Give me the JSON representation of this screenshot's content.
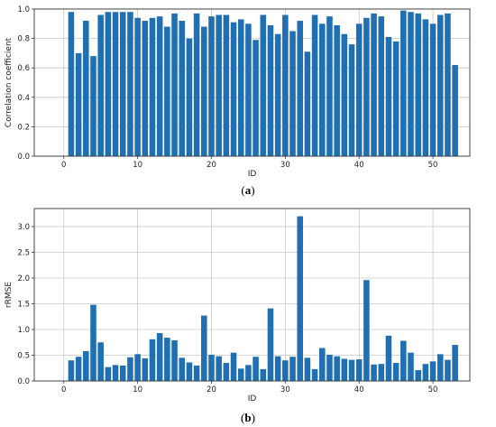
{
  "chart_data": [
    {
      "id": "a",
      "type": "bar",
      "xlabel": "ID",
      "ylabel": "Correlation coefficient",
      "xlim": [
        -4,
        55
      ],
      "ylim": [
        0,
        1.0
      ],
      "xticks": [
        0,
        10,
        20,
        30,
        40,
        50
      ],
      "yticks": [
        0.0,
        0.2,
        0.4,
        0.6,
        0.8,
        1.0
      ],
      "grid": true,
      "bar_color": "#1f6fb2",
      "x": [
        1,
        2,
        3,
        4,
        5,
        6,
        7,
        8,
        9,
        10,
        11,
        12,
        13,
        14,
        15,
        16,
        17,
        18,
        19,
        20,
        21,
        22,
        23,
        24,
        25,
        26,
        27,
        28,
        29,
        30,
        31,
        32,
        33,
        34,
        35,
        36,
        37,
        38,
        39,
        40,
        41,
        42,
        43,
        44,
        45,
        46,
        47,
        48,
        49,
        50,
        51,
        52,
        53
      ],
      "values": [
        0.98,
        0.7,
        0.92,
        0.68,
        0.96,
        0.98,
        0.98,
        0.98,
        0.98,
        0.94,
        0.92,
        0.94,
        0.95,
        0.88,
        0.97,
        0.92,
        0.8,
        0.97,
        0.88,
        0.95,
        0.96,
        0.96,
        0.91,
        0.93,
        0.9,
        0.79,
        0.96,
        0.89,
        0.83,
        0.96,
        0.85,
        0.92,
        0.71,
        0.96,
        0.9,
        0.95,
        0.89,
        0.83,
        0.76,
        0.9,
        0.94,
        0.97,
        0.95,
        0.81,
        0.78,
        0.99,
        0.98,
        0.97,
        0.93,
        0.9,
        0.96,
        0.97,
        0.62
      ],
      "caption_label": "a"
    },
    {
      "id": "b",
      "type": "bar",
      "xlabel": "ID",
      "ylabel": "rRMSE",
      "xlim": [
        -4,
        55
      ],
      "ylim": [
        0,
        3.35
      ],
      "xticks": [
        0,
        10,
        20,
        30,
        40,
        50
      ],
      "yticks": [
        0.0,
        0.5,
        1.0,
        1.5,
        2.0,
        2.5,
        3.0
      ],
      "grid": true,
      "bar_color": "#1f6fb2",
      "x": [
        1,
        2,
        3,
        4,
        5,
        6,
        7,
        8,
        9,
        10,
        11,
        12,
        13,
        14,
        15,
        16,
        17,
        18,
        19,
        20,
        21,
        22,
        23,
        24,
        25,
        26,
        27,
        28,
        29,
        30,
        31,
        32,
        33,
        34,
        35,
        36,
        37,
        38,
        39,
        40,
        41,
        42,
        43,
        44,
        45,
        46,
        47,
        48,
        49,
        50,
        51,
        52,
        53
      ],
      "values": [
        0.4,
        0.47,
        0.58,
        1.48,
        0.75,
        0.27,
        0.31,
        0.3,
        0.46,
        0.52,
        0.44,
        0.81,
        0.93,
        0.84,
        0.79,
        0.45,
        0.36,
        0.3,
        1.27,
        0.51,
        0.48,
        0.35,
        0.55,
        0.24,
        0.31,
        0.47,
        0.23,
        1.41,
        0.48,
        0.4,
        0.47,
        3.2,
        0.45,
        0.23,
        0.64,
        0.51,
        0.48,
        0.43,
        0.41,
        0.42,
        1.96,
        0.32,
        0.33,
        0.88,
        0.35,
        0.78,
        0.55,
        0.21,
        0.33,
        0.38,
        0.52,
        0.41,
        0.7
      ],
      "caption_label": "b"
    }
  ]
}
